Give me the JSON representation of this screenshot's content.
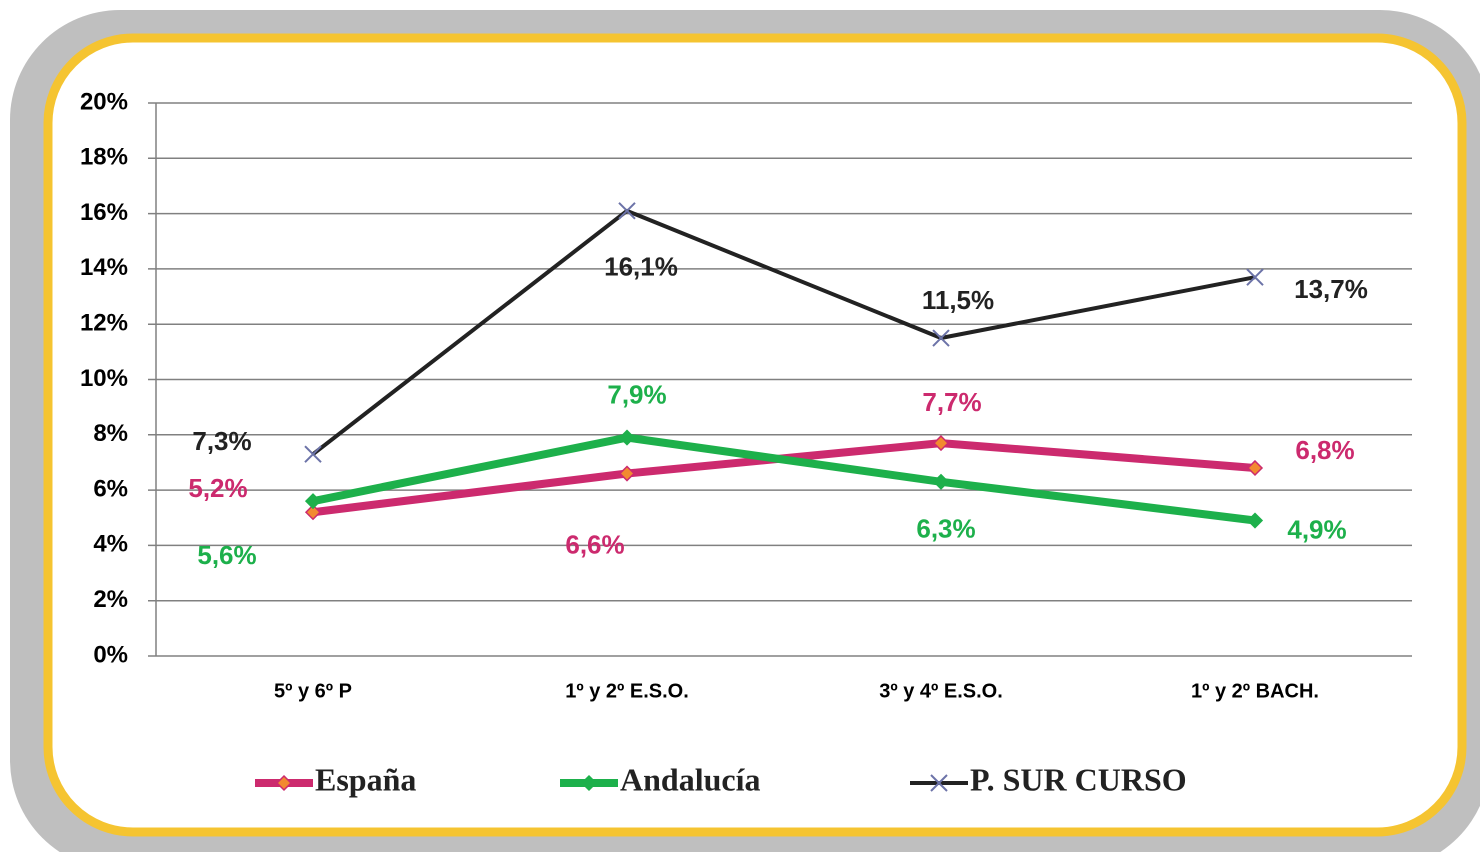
{
  "chart_data": {
    "type": "line",
    "categories": [
      "5º y 6º P",
      "1º y 2º E.S.O.",
      "3º y 4º E.S.O.",
      "1º y 2º BACH."
    ],
    "series": [
      {
        "name": "España",
        "color": "#cc2a6e",
        "values": [
          5.2,
          6.6,
          7.7,
          6.8
        ],
        "value_labels": [
          "5,2%",
          "6,6%",
          "7,7%",
          "6,8%"
        ]
      },
      {
        "name": "Andalucía",
        "color": "#1db04b",
        "values": [
          5.6,
          7.9,
          6.3,
          4.9
        ],
        "value_labels": [
          "5,6%",
          "7,9%",
          "6,3%",
          "4,9%"
        ]
      },
      {
        "name": "P. SUR CURSO",
        "color": "#222222",
        "values": [
          7.3,
          16.1,
          11.5,
          13.7
        ],
        "value_labels": [
          "7,3%",
          "16,1%",
          "11,5%",
          "13,7%"
        ]
      }
    ],
    "ylim": [
      0,
      20
    ],
    "yticks": [
      {
        "value": 0,
        "label": "0%"
      },
      {
        "value": 2,
        "label": "2%"
      },
      {
        "value": 4,
        "label": "4%"
      },
      {
        "value": 6,
        "label": "6%"
      },
      {
        "value": 8,
        "label": "8%"
      },
      {
        "value": 10,
        "label": "10%"
      },
      {
        "value": 12,
        "label": "12%"
      },
      {
        "value": 14,
        "label": "14%"
      },
      {
        "value": 16,
        "label": "16%"
      },
      {
        "value": 18,
        "label": "18%"
      },
      {
        "value": 20,
        "label": "20%"
      }
    ],
    "grid": true,
    "legend": "bottom"
  }
}
